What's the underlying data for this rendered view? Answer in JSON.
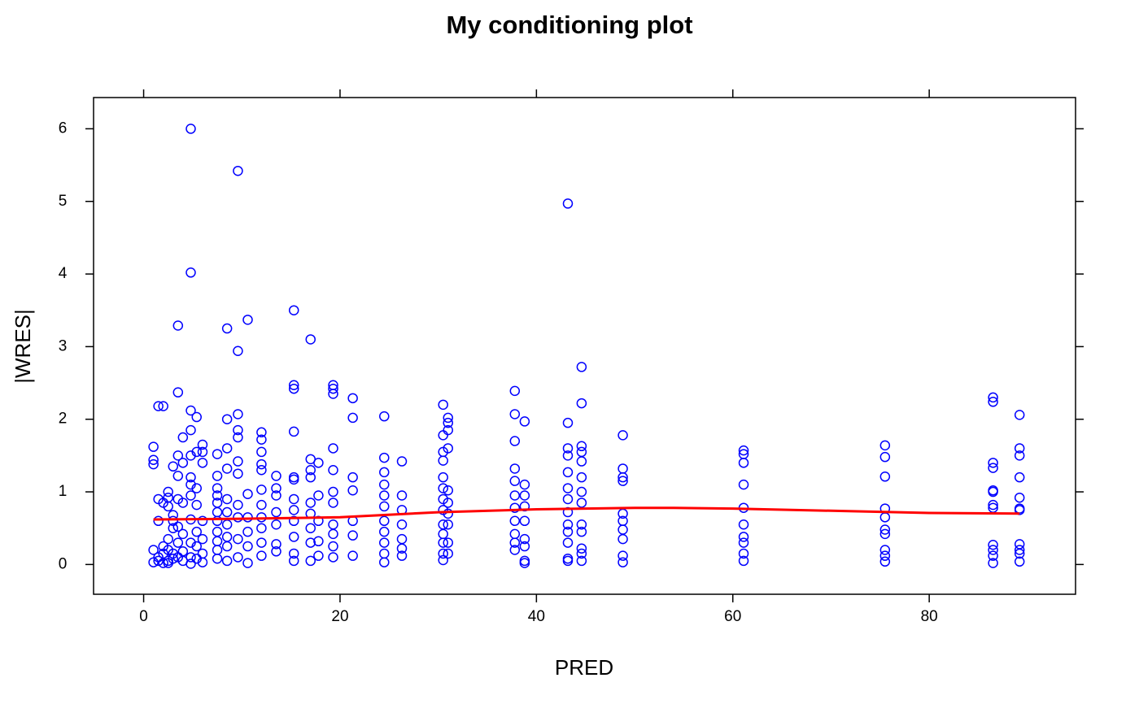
{
  "chart_data": {
    "type": "scatter",
    "title": "My conditioning plot",
    "xlabel": "PRED",
    "ylabel": "|WRES|",
    "xlim": [
      -5.1,
      94.9
    ],
    "ylim": [
      -0.41,
      6.43
    ],
    "xticks": [
      0,
      20,
      40,
      60,
      80
    ],
    "yticks": [
      0,
      1,
      2,
      3,
      4,
      5,
      6
    ],
    "color": "#0000ff",
    "x": [
      1,
      1,
      1,
      1,
      1,
      1.5,
      1.5,
      1.5,
      1.5,
      1.5,
      2,
      2,
      2,
      2,
      2,
      2.5,
      2.5,
      2.5,
      2.5,
      2.5,
      2.5,
      2.5,
      3,
      3,
      3,
      3,
      3,
      3,
      3.5,
      3.5,
      3.5,
      3.5,
      3.5,
      3.5,
      3.5,
      3.5,
      4,
      4,
      4,
      4,
      4,
      4,
      4.8,
      4.8,
      4.8,
      4.8,
      4.8,
      4.8,
      4.8,
      4.8,
      4.8,
      4.8,
      4.8,
      4.8,
      5.4,
      5.4,
      5.4,
      5.4,
      5.4,
      5.4,
      5.4,
      6,
      6,
      6,
      6,
      6,
      6,
      6,
      7.5,
      7.5,
      7.5,
      7.5,
      7.5,
      7.5,
      7.5,
      7.5,
      7.5,
      7.5,
      7.5,
      8.5,
      8.5,
      8.5,
      8.5,
      8.5,
      8.5,
      8.5,
      8.5,
      8.5,
      8.5,
      9.6,
      9.6,
      9.6,
      9.6,
      9.6,
      9.6,
      9.6,
      9.6,
      9.6,
      9.6,
      9.6,
      10.6,
      10.6,
      10.6,
      10.6,
      10.6,
      10.6,
      12,
      12,
      12,
      12,
      12,
      12,
      12,
      12,
      12,
      12,
      12,
      13.5,
      13.5,
      13.5,
      13.5,
      13.5,
      13.5,
      13.5,
      15.3,
      15.3,
      15.3,
      15.3,
      15.3,
      15.3,
      15.3,
      15.3,
      15.3,
      15.3,
      15.3,
      15.3,
      17,
      17,
      17,
      17,
      17,
      17,
      17,
      17,
      17,
      17.8,
      17.8,
      17.8,
      17.8,
      17.8,
      19.3,
      19.3,
      19.3,
      19.3,
      19.3,
      19.3,
      19.3,
      19.3,
      19.3,
      19.3,
      19.3,
      21.3,
      21.3,
      21.3,
      21.3,
      21.3,
      21.3,
      21.3,
      24.5,
      24.5,
      24.5,
      24.5,
      24.5,
      24.5,
      24.5,
      24.5,
      24.5,
      24.5,
      24.5,
      26.3,
      26.3,
      26.3,
      26.3,
      26.3,
      26.3,
      26.3,
      30.5,
      30.5,
      30.5,
      30.5,
      30.5,
      30.5,
      30.5,
      30.5,
      30.5,
      30.5,
      30.5,
      30.5,
      30.5,
      31,
      31,
      31,
      31,
      31,
      31,
      31,
      31,
      31,
      31,
      37.8,
      37.8,
      37.8,
      37.8,
      37.8,
      37.8,
      37.8,
      37.8,
      37.8,
      37.8,
      37.8,
      38.8,
      38.8,
      38.8,
      38.8,
      38.8,
      38.8,
      38.8,
      38.8,
      38.8,
      43.2,
      43.2,
      43.2,
      43.2,
      43.2,
      43.2,
      43.2,
      43.2,
      43.2,
      43.2,
      43.2,
      43.2,
      43.2,
      44.6,
      44.6,
      44.6,
      44.6,
      44.6,
      44.6,
      44.6,
      44.6,
      44.6,
      44.6,
      44.6,
      44.6,
      44.6,
      48.8,
      48.8,
      48.8,
      48.8,
      48.8,
      48.8,
      48.8,
      48.8,
      48.8,
      48.8,
      61.1,
      61.1,
      61.1,
      61.1,
      61.1,
      61.1,
      61.1,
      61.1,
      61.1,
      61.1,
      75.5,
      75.5,
      75.5,
      75.5,
      75.5,
      75.5,
      75.5,
      75.5,
      75.5,
      75.5,
      86.5,
      86.5,
      86.5,
      86.5,
      86.5,
      86.5,
      86.5,
      86.5,
      86.5,
      86.5,
      86.5,
      86.5,
      89.2,
      89.2,
      89.2,
      89.2,
      89.2,
      89.2,
      89.2,
      89.2,
      89.2,
      89.2,
      89.2
    ],
    "values": [
      1.62,
      1.44,
      1.38,
      0.03,
      0.2,
      2.18,
      0.9,
      0.6,
      0.1,
      0.05,
      2.18,
      0.85,
      0.15,
      0.02,
      0.25,
      1.0,
      0.92,
      0.8,
      0.35,
      0.2,
      0.05,
      0.02,
      1.35,
      0.6,
      0.5,
      0.15,
      0.08,
      0.68,
      3.29,
      2.37,
      1.5,
      1.22,
      0.9,
      0.52,
      0.3,
      0.1,
      1.75,
      1.4,
      0.85,
      0.42,
      0.18,
      0.05,
      6.0,
      4.02,
      2.12,
      1.85,
      1.5,
      1.2,
      1.1,
      0.95,
      0.62,
      0.3,
      0.1,
      0.01,
      2.03,
      1.55,
      1.05,
      0.82,
      0.45,
      0.25,
      0.08,
      1.65,
      1.55,
      1.4,
      0.6,
      0.35,
      0.15,
      0.03,
      1.52,
      1.22,
      1.05,
      0.95,
      0.85,
      0.72,
      0.6,
      0.45,
      0.32,
      0.2,
      0.08,
      3.25,
      2.0,
      1.6,
      1.32,
      0.9,
      0.72,
      0.55,
      0.38,
      0.25,
      0.05,
      5.42,
      2.94,
      2.07,
      1.85,
      1.75,
      1.42,
      1.25,
      0.82,
      0.65,
      0.35,
      0.1,
      3.37,
      0.97,
      0.65,
      0.45,
      0.25,
      0.02,
      1.82,
      1.72,
      1.55,
      1.38,
      1.3,
      1.03,
      0.82,
      0.65,
      0.5,
      0.3,
      0.12,
      1.22,
      1.05,
      0.95,
      0.72,
      0.55,
      0.28,
      0.18,
      3.5,
      2.47,
      2.42,
      1.83,
      1.2,
      1.17,
      0.9,
      0.75,
      0.6,
      0.38,
      0.15,
      0.05,
      3.1,
      1.45,
      1.3,
      1.2,
      0.85,
      0.7,
      0.5,
      0.3,
      0.05,
      1.4,
      0.95,
      0.6,
      0.32,
      0.12,
      2.47,
      2.42,
      2.35,
      1.6,
      1.3,
      1.0,
      0.85,
      0.55,
      0.42,
      0.25,
      0.1,
      2.29,
      2.02,
      1.2,
      1.02,
      0.6,
      0.4,
      0.12,
      2.04,
      1.47,
      1.27,
      1.1,
      0.95,
      0.8,
      0.6,
      0.45,
      0.3,
      0.15,
      0.03,
      1.42,
      0.95,
      0.75,
      0.55,
      0.35,
      0.22,
      0.12,
      2.2,
      1.78,
      1.55,
      1.43,
      1.2,
      1.05,
      0.9,
      0.75,
      0.55,
      0.42,
      0.3,
      0.15,
      0.06,
      2.02,
      1.95,
      1.85,
      1.6,
      1.02,
      0.85,
      0.7,
      0.55,
      0.3,
      0.15,
      2.39,
      2.07,
      1.7,
      1.32,
      1.15,
      0.95,
      0.78,
      0.6,
      0.42,
      0.3,
      0.2,
      1.97,
      1.1,
      0.95,
      0.8,
      0.6,
      0.35,
      0.25,
      0.05,
      0.02,
      4.97,
      1.95,
      1.6,
      1.5,
      1.27,
      1.05,
      0.9,
      0.72,
      0.55,
      0.45,
      0.3,
      0.08,
      0.05,
      2.72,
      2.22,
      1.63,
      1.55,
      1.42,
      1.2,
      1.0,
      0.85,
      0.55,
      0.45,
      0.22,
      0.15,
      0.05,
      1.78,
      1.32,
      1.2,
      1.15,
      0.7,
      0.6,
      0.48,
      0.35,
      0.12,
      0.03,
      1.57,
      1.52,
      1.4,
      1.1,
      0.78,
      0.55,
      0.38,
      0.3,
      0.15,
      0.05,
      1.64,
      1.48,
      1.21,
      0.77,
      0.65,
      0.48,
      0.42,
      0.2,
      0.12,
      0.04,
      2.3,
      2.24,
      1.4,
      1.33,
      1.02,
      1.0,
      0.82,
      0.78,
      0.27,
      0.2,
      0.12,
      0.02,
      2.06,
      1.6,
      1.5,
      1.2,
      0.92,
      0.77,
      0.75,
      0.28,
      0.2,
      0.15,
      0.04
    ],
    "smooth": {
      "color": "#ff0000",
      "x": [
        1,
        10,
        20,
        30,
        40,
        50,
        54,
        60,
        70,
        80,
        89.2
      ],
      "values": [
        0.62,
        0.63,
        0.65,
        0.72,
        0.76,
        0.78,
        0.78,
        0.77,
        0.74,
        0.71,
        0.7
      ]
    }
  }
}
